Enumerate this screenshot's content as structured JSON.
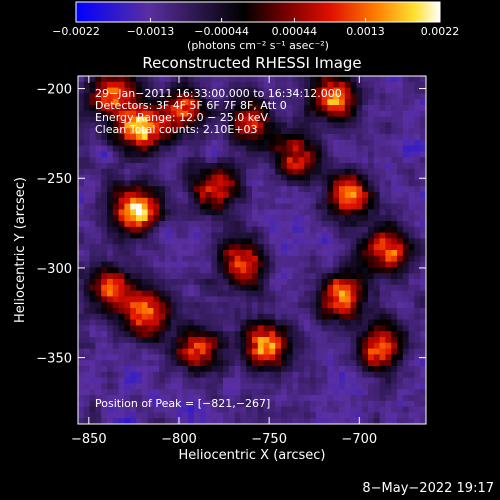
{
  "chart_data": {
    "type": "heatmap",
    "title": "Reconstructed RHESSI Image",
    "xlabel": "Heliocentric X (arcsec)",
    "ylabel": "Heliocentric Y (arcsec)",
    "xlim": [
      -856,
      -663
    ],
    "ylim": [
      -387,
      -193
    ],
    "x_ticks": [
      -850,
      -800,
      -750,
      -700
    ],
    "x_tick_labels": [
      "−850",
      "−800",
      "−750",
      "−700"
    ],
    "y_ticks": [
      -200,
      -250,
      -300,
      -350
    ],
    "y_tick_labels": [
      "−200",
      "−250",
      "−300",
      "−350"
    ],
    "colorbar": {
      "range": [
        -0.0022,
        0.0022
      ],
      "ticks": [
        -0.0022,
        -0.0013,
        -0.00044,
        0.00044,
        0.0013,
        0.0022
      ],
      "tick_labels": [
        "−0.0022",
        "−0.0013",
        "−0.00044",
        "0.00044",
        "0.0013",
        "0.0022"
      ],
      "units": "(photons cm⁻² s⁻¹ asec⁻²)",
      "colors": [
        "#0000ff",
        "#5a2fa0",
        "#000000",
        "#7a0000",
        "#e01000",
        "#ff7a00",
        "#ffe030",
        "#ffffff"
      ]
    },
    "annotations": [
      "29−Jan−2011 16:33:00.000 to 16:34:12.000",
      "Detectors: 3F 4F 5F 6F 7F 8F, Att 0",
      "Energy Range: 12.0 − 25.0 keV",
      "Clean    Total counts: 2.10E+03"
    ],
    "peak_label": "Position of Peak = [−821,−267]",
    "peak": [
      -821,
      -267
    ],
    "bright_sources": [
      {
        "x": -822,
        "y": -222,
        "intensity": 0.0019
      },
      {
        "x": -823,
        "y": -267,
        "intensity": 0.0022
      },
      {
        "x": -837,
        "y": -203,
        "intensity": 0.0012
      },
      {
        "x": -798,
        "y": -212,
        "intensity": 0.001
      },
      {
        "x": -780,
        "y": -255,
        "intensity": 0.001
      },
      {
        "x": -765,
        "y": -298,
        "intensity": 0.0013
      },
      {
        "x": -752,
        "y": -343,
        "intensity": 0.0016
      },
      {
        "x": -715,
        "y": -205,
        "intensity": 0.0014
      },
      {
        "x": -705,
        "y": -260,
        "intensity": 0.0013
      },
      {
        "x": -685,
        "y": -290,
        "intensity": 0.0012
      },
      {
        "x": -710,
        "y": -315,
        "intensity": 0.0014
      },
      {
        "x": -688,
        "y": -345,
        "intensity": 0.0012
      },
      {
        "x": -818,
        "y": -325,
        "intensity": 0.0013
      },
      {
        "x": -838,
        "y": -312,
        "intensity": 0.001
      },
      {
        "x": -790,
        "y": -345,
        "intensity": 0.0009
      },
      {
        "x": -735,
        "y": -238,
        "intensity": 0.001
      },
      {
        "x": -760,
        "y": -218,
        "intensity": 0.0009
      }
    ]
  },
  "footer": {
    "timestamp": "8−May−2022 19:17"
  }
}
